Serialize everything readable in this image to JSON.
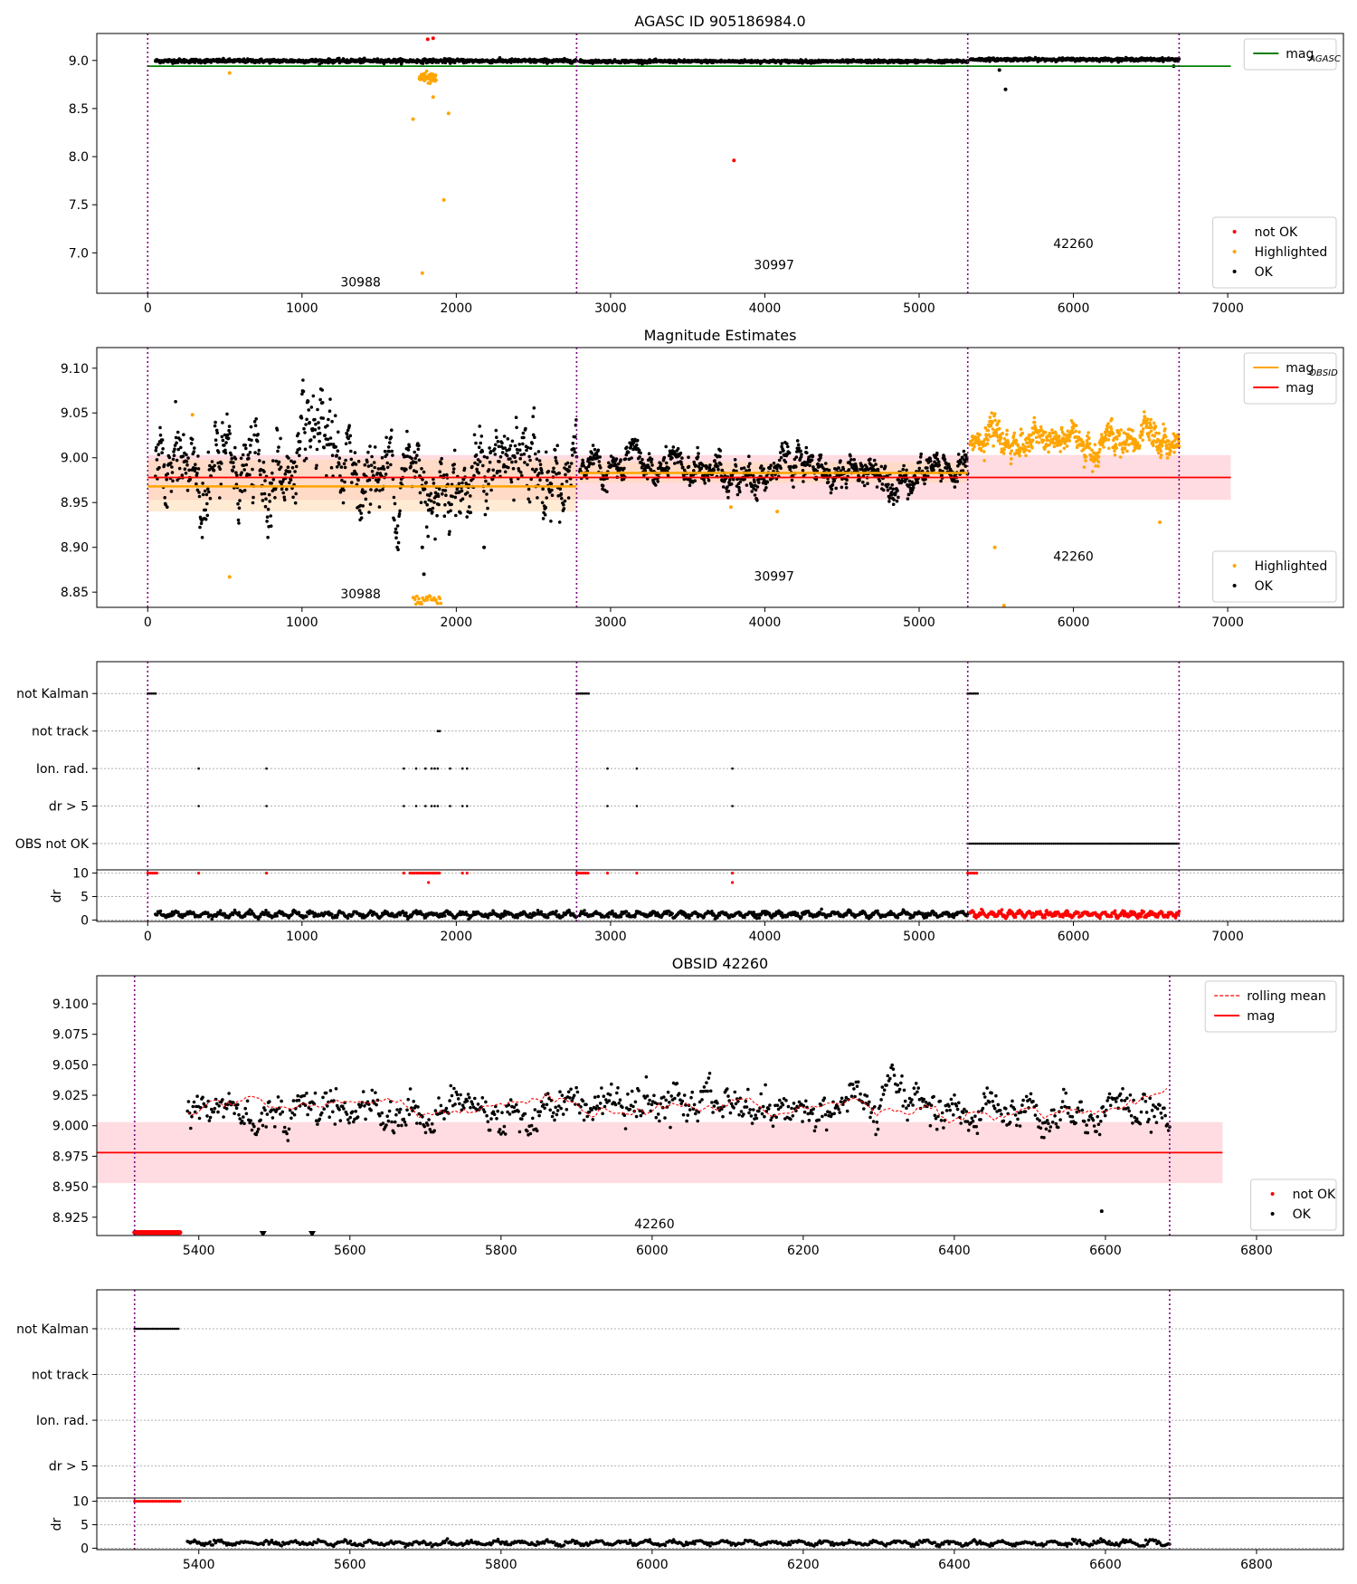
{
  "figure_title": "AGASC ID 905186984.0",
  "colors": {
    "ok": "#000000",
    "not_ok": "#ff0000",
    "highlighted": "#ffa500",
    "mag_agasc": "#008000",
    "mag_obsid": "#ffa500",
    "mag": "#ff0000",
    "band": "#ffc0c8",
    "band_obsid": "#ffd8b0",
    "obs_boundary": "#800080",
    "grid": "#b0b0b0"
  },
  "chart_data": [
    {
      "id": "panel1",
      "type": "scatter",
      "title": "AGASC ID 905186984.0",
      "xlim": [
        -330,
        7750
      ],
      "ylim": [
        6.58,
        9.28
      ],
      "xticks": [
        0,
        1000,
        2000,
        3000,
        4000,
        5000,
        6000,
        7000
      ],
      "yticks": [
        7.0,
        7.5,
        8.0,
        8.5,
        9.0
      ],
      "ytick_labels": [
        "7.0",
        "7.5",
        "8.0",
        "8.5",
        "9.0"
      ],
      "obs_boundaries": [
        0,
        2780,
        5315,
        6685
      ],
      "obs_labels": [
        {
          "text": "30988",
          "x": 1380,
          "y": 6.65
        },
        {
          "text": "30997",
          "x": 4060,
          "y": 6.83
        },
        {
          "text": "42260",
          "x": 6000,
          "y": 7.05
        }
      ],
      "hlines": [
        {
          "name": "mag_AGASC",
          "y": 8.94,
          "x0": 0,
          "x1": 7020,
          "color": "mag_agasc"
        }
      ],
      "legend_top": [
        {
          "label": "mag",
          "sub": "AGASC",
          "kind": "line",
          "color": "mag_agasc"
        }
      ],
      "legend_bottom": [
        {
          "label": "not OK",
          "kind": "dot",
          "color": "not_ok"
        },
        {
          "label": "Highlighted",
          "kind": "dot",
          "color": "highlighted"
        },
        {
          "label": "OK",
          "kind": "dot",
          "color": "ok"
        }
      ],
      "series": [
        {
          "name": "OK",
          "color": "ok",
          "segments": [
            {
              "x0": 50,
              "x1": 2780,
              "y": 8.995,
              "spread": 0.02,
              "n": 900
            },
            {
              "x0": 2800,
              "x1": 5315,
              "y": 8.99,
              "spread": 0.015,
              "n": 900
            },
            {
              "x0": 5330,
              "x1": 6685,
              "y": 9.01,
              "spread": 0.015,
              "n": 500
            }
          ],
          "extra": [
            [
              5520,
              8.9
            ],
            [
              5560,
              8.7
            ],
            [
              6650,
              8.94
            ]
          ]
        },
        {
          "name": "Highlighted",
          "color": "highlighted",
          "segments": [
            {
              "x0": 1760,
              "x1": 1870,
              "y": 8.82,
              "spread": 0.05,
              "n": 60
            }
          ],
          "extra": [
            [
              530,
              8.87
            ],
            [
              1720,
              8.39
            ],
            [
              1850,
              8.62
            ],
            [
              1920,
              7.55
            ],
            [
              1780,
              6.79
            ],
            [
              1950,
              8.45
            ]
          ]
        },
        {
          "name": "not OK",
          "color": "not_ok",
          "segments": [],
          "extra": [
            [
              1815,
              9.22
            ],
            [
              1850,
              9.23
            ],
            [
              3800,
              7.96
            ]
          ]
        }
      ]
    },
    {
      "id": "panel2",
      "type": "scatter",
      "title": "Magnitude Estimates",
      "xlim": [
        -330,
        7750
      ],
      "ylim": [
        8.833,
        9.123
      ],
      "xticks": [
        0,
        1000,
        2000,
        3000,
        4000,
        5000,
        6000,
        7000
      ],
      "yticks": [
        8.85,
        8.9,
        8.95,
        9.0,
        9.05,
        9.1
      ],
      "ytick_labels": [
        "8.85",
        "8.90",
        "8.95",
        "9.00",
        "9.05",
        "9.10"
      ],
      "obs_boundaries": [
        0,
        2780,
        5315,
        6685
      ],
      "obs_labels": [
        {
          "text": "30988",
          "x": 1380,
          "y": 8.843
        },
        {
          "text": "30997",
          "x": 4060,
          "y": 8.863
        },
        {
          "text": "42260",
          "x": 6000,
          "y": 8.885
        }
      ],
      "bands": [
        {
          "x0": 0,
          "x1": 7020,
          "y0": 8.953,
          "y1": 9.003,
          "color": "band"
        },
        {
          "x0": 0,
          "x1": 2780,
          "y0": 8.94,
          "y1": 8.998,
          "color": "band_obsid"
        },
        {
          "x0": 2800,
          "x1": 5315,
          "y0": 8.972,
          "y1": 8.995,
          "color": "band_obsid"
        }
      ],
      "hlines": [
        {
          "name": "mag_OBSID_30988",
          "y": 8.968,
          "x0": 0,
          "x1": 2780,
          "color": "mag_obsid"
        },
        {
          "name": "mag_OBSID_30997",
          "y": 8.983,
          "x0": 2800,
          "x1": 5315,
          "color": "mag_obsid"
        },
        {
          "name": "mag",
          "y": 8.978,
          "x0": 0,
          "x1": 7020,
          "color": "mag"
        }
      ],
      "legend_top": [
        {
          "label": "mag",
          "sub": "OBSID",
          "kind": "line",
          "color": "mag_obsid"
        },
        {
          "label": "mag",
          "sub": "",
          "kind": "line",
          "color": "mag"
        }
      ],
      "legend_bottom": [
        {
          "label": "Highlighted",
          "kind": "dot",
          "color": "highlighted"
        },
        {
          "label": "OK",
          "kind": "dot",
          "color": "ok"
        }
      ],
      "series": [
        {
          "name": "OK",
          "color": "ok",
          "segments": [
            {
              "x0": 50,
              "x1": 2780,
              "y": 8.985,
              "spread": 0.03,
              "n": 900
            },
            {
              "x0": 2800,
              "x1": 5315,
              "y": 8.985,
              "spread": 0.012,
              "n": 900
            }
          ],
          "extra": [
            [
              1780,
              8.9
            ],
            [
              1790,
              8.87
            ],
            [
              2180,
              8.9
            ]
          ]
        },
        {
          "name": "Highlighted",
          "color": "highlighted",
          "segments": [
            {
              "x0": 5330,
              "x1": 6685,
              "y": 9.018,
              "spread": 0.011,
              "n": 600
            },
            {
              "x0": 1720,
              "x1": 1900,
              "y": 8.84,
              "spread": 0.005,
              "n": 30
            }
          ],
          "extra": [
            [
              290,
              9.048
            ],
            [
              530,
              8.867
            ],
            [
              4080,
              8.94
            ],
            [
              3780,
              8.945
            ],
            [
              5490,
              8.9
            ],
            [
              5550,
              8.835
            ],
            [
              6560,
              8.928
            ]
          ]
        }
      ]
    },
    {
      "id": "panel3",
      "type": "event-strip",
      "xlim": [
        -330,
        7750
      ],
      "xticks": [
        0,
        1000,
        2000,
        3000,
        4000,
        5000,
        6000,
        7000
      ],
      "rows": [
        "not Kalman",
        "not track",
        "Ion. rad.",
        "dr > 5",
        "OBS not OK"
      ],
      "obs_boundaries": [
        0,
        2780,
        5315,
        6685
      ],
      "events": [
        {
          "row": 0,
          "ranges": [
            [
              0,
              60
            ],
            [
              2780,
              2860
            ],
            [
              5315,
              5380
            ]
          ]
        },
        {
          "row": 1,
          "ranges": [
            [
              1880,
              1900
            ]
          ]
        },
        {
          "row": 2,
          "points": [
            330,
            770,
            1660,
            1740,
            1800,
            1840,
            1860,
            1880,
            1960,
            2040,
            2070,
            2980,
            3170,
            3790
          ]
        },
        {
          "row": 3,
          "points": [
            330,
            770,
            1660,
            1740,
            1800,
            1840,
            1860,
            1880,
            1960,
            2040,
            2070,
            2980,
            3170,
            3790
          ]
        },
        {
          "row": 4,
          "ranges": [
            [
              5315,
              6685
            ]
          ]
        }
      ],
      "dr": {
        "ylim": [
          -0.3,
          10.5
        ],
        "yticks": [
          0,
          5,
          10
        ],
        "label": "dr",
        "ok_segments": [
          {
            "x0": 50,
            "x1": 2780,
            "y": 1.2,
            "spread": 0.7,
            "n": 500
          },
          {
            "x0": 2800,
            "x1": 5315,
            "y": 1.2,
            "spread": 0.7,
            "n": 500
          }
        ],
        "notok_segments": [
          {
            "x0": 5330,
            "x1": 6685,
            "y": 1.2,
            "spread": 0.7,
            "n": 350
          }
        ],
        "notok_top": [
          [
            0,
            60
          ],
          [
            2780,
            2860
          ],
          [
            5315,
            5380
          ],
          [
            1700,
            1900
          ]
        ],
        "notok_points": [
          [
            330,
            10
          ],
          [
            770,
            10
          ],
          [
            1660,
            10
          ],
          [
            1820,
            8
          ],
          [
            2040,
            10
          ],
          [
            2070,
            10
          ],
          [
            2980,
            10
          ],
          [
            3170,
            10
          ],
          [
            3790,
            8
          ],
          [
            3790,
            10
          ]
        ]
      }
    },
    {
      "id": "panel4",
      "type": "scatter",
      "title": "OBSID 42260",
      "xlim": [
        5265,
        6915
      ],
      "ylim": [
        8.91,
        9.123
      ],
      "xticks": [
        5400,
        5600,
        5800,
        6000,
        6200,
        6400,
        6600,
        6800
      ],
      "yticks": [
        8.925,
        8.95,
        8.975,
        9.0,
        9.025,
        9.05,
        9.075,
        9.1
      ],
      "ytick_labels": [
        "8.925",
        "8.950",
        "8.975",
        "9.000",
        "9.025",
        "9.050",
        "9.075",
        "9.100"
      ],
      "obs_boundaries": [
        5315,
        6685
      ],
      "obs_labels": [
        {
          "text": "42260",
          "x": 6003,
          "y": 8.916
        }
      ],
      "bands": [
        {
          "x0": 5265,
          "x1": 6755,
          "y0": 8.953,
          "y1": 9.003,
          "color": "band"
        }
      ],
      "hlines": [
        {
          "name": "mag",
          "y": 8.978,
          "x0": 5265,
          "x1": 6755,
          "color": "mag"
        }
      ],
      "legend_top": [
        {
          "label": "rolling mean",
          "sub": "",
          "kind": "dashed",
          "color": "mag"
        },
        {
          "label": "mag",
          "sub": "",
          "kind": "line",
          "color": "mag"
        }
      ],
      "legend_bottom": [
        {
          "label": "not OK",
          "kind": "dot",
          "color": "not_ok"
        },
        {
          "label": "OK",
          "kind": "dot",
          "color": "ok"
        }
      ],
      "series": [
        {
          "name": "OK",
          "color": "ok",
          "segments": [
            {
              "x0": 5385,
              "x1": 6685,
              "y": 9.016,
              "spread": 0.011,
              "n": 900
            }
          ],
          "extra": [
            [
              6595,
              8.93
            ]
          ]
        },
        {
          "name": "not OK",
          "color": "not_ok",
          "segments": [
            {
              "x0": 5315,
              "x1": 5375,
              "y": 8.9125,
              "spread": 0.0,
              "n": 60
            }
          ],
          "extra": []
        }
      ],
      "triangles": [
        [
          5485,
          8.9115
        ],
        [
          5550,
          8.9115
        ]
      ]
    },
    {
      "id": "panel5",
      "type": "event-strip",
      "xlim": [
        5265,
        6915
      ],
      "xticks": [
        5400,
        5600,
        5800,
        6000,
        6200,
        6400,
        6600,
        6800
      ],
      "rows": [
        "not Kalman",
        "not track",
        "Ion. rad.",
        "dr > 5"
      ],
      "obs_boundaries": [
        5315,
        6685
      ],
      "events": [
        {
          "row": 0,
          "ranges": [
            [
              5315,
              5375
            ]
          ]
        }
      ],
      "dr": {
        "ylim": [
          -0.3,
          10.5
        ],
        "yticks": [
          0,
          5,
          10
        ],
        "label": "dr",
        "ok_segments": [
          {
            "x0": 5385,
            "x1": 6685,
            "y": 1.1,
            "spread": 0.6,
            "n": 700
          }
        ],
        "notok_segments": [],
        "notok_top": [
          [
            5315,
            5375
          ]
        ],
        "notok_points": []
      }
    }
  ]
}
